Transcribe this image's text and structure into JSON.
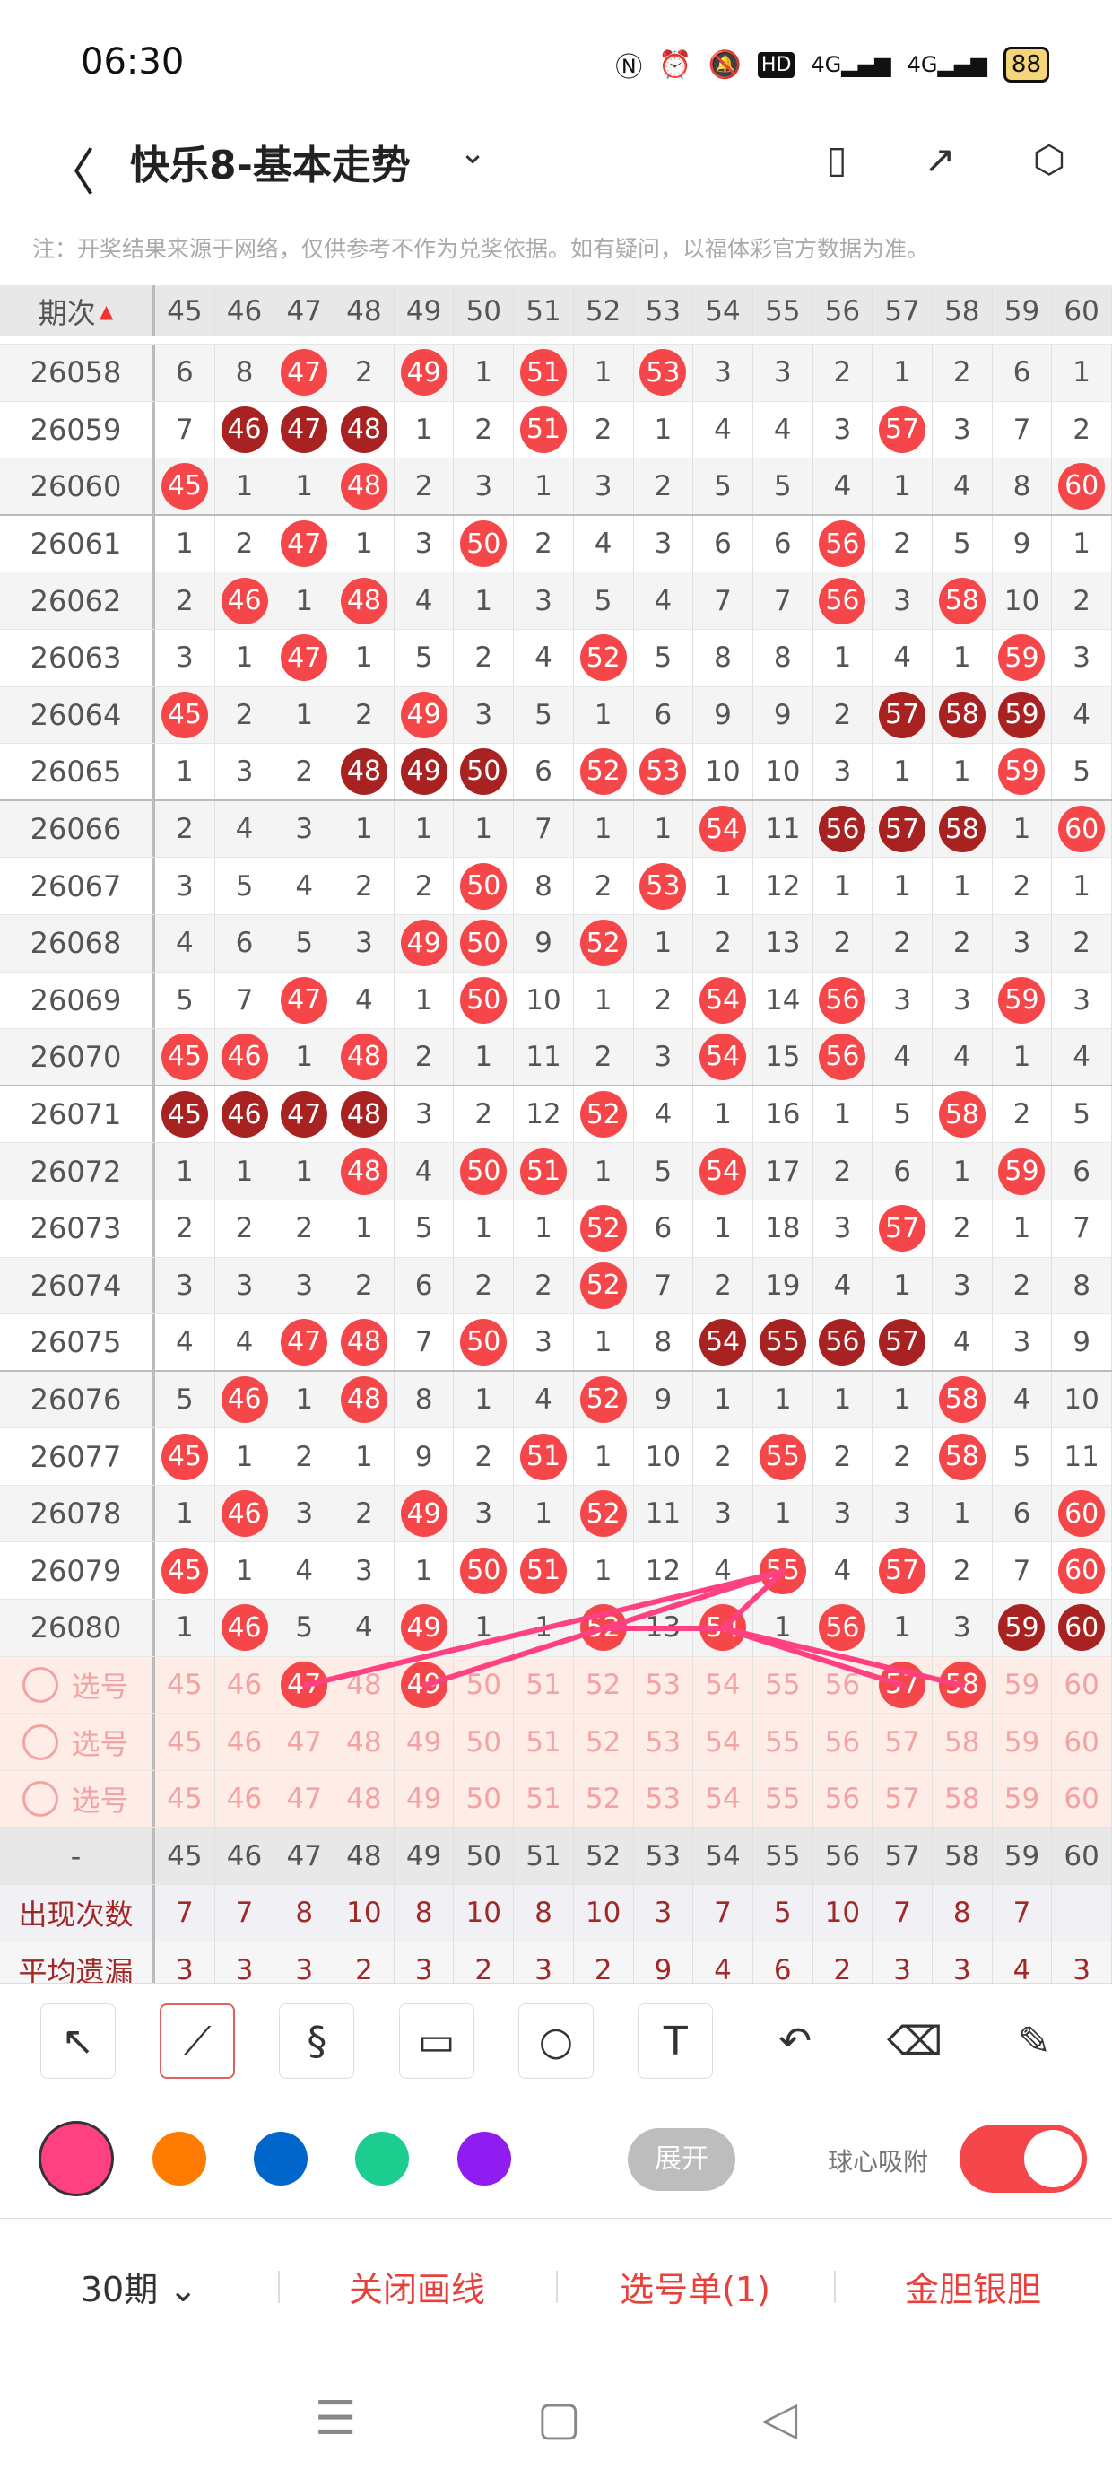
{
  "status_bar": {
    "time": "06:30",
    "battery": "88",
    "icons": [
      "nfc-icon",
      "alarm-icon",
      "mute-icon",
      "hd-icon",
      "signal-4g-icon",
      "signal-4g-icon"
    ],
    "hd": "HD",
    "net": "4G"
  },
  "header": {
    "title": "快乐8-基本走势",
    "back": "〈",
    "dropdown": "⌄"
  },
  "note": "注：开奖结果来源于网络，仅供参考不作为兑奖依据。如有疑问，以福体彩官方数据为准。",
  "table": {
    "period_header": "期次",
    "columns": [
      "45",
      "46",
      "47",
      "48",
      "49",
      "50",
      "51",
      "52",
      "53",
      "54",
      "55",
      "56",
      "57",
      "58",
      "59",
      "60"
    ],
    "ball_colors": {
      "hit": "#f5474a",
      "consecutive": "#a82222"
    },
    "rows": [
      {
        "period": "26058",
        "cells": [
          6,
          8,
          47,
          2,
          49,
          1,
          51,
          1,
          53,
          3,
          3,
          2,
          1,
          2,
          6,
          1
        ],
        "dark": []
      },
      {
        "period": "26059",
        "cells": [
          7,
          46,
          47,
          48,
          1,
          2,
          51,
          2,
          1,
          4,
          4,
          3,
          57,
          3,
          7,
          2
        ],
        "dark": [
          46,
          47,
          48
        ]
      },
      {
        "period": "26060",
        "cells": [
          45,
          1,
          1,
          48,
          2,
          3,
          1,
          3,
          2,
          5,
          5,
          4,
          1,
          4,
          8,
          60
        ],
        "dark": []
      },
      {
        "period": "26061",
        "cells": [
          1,
          2,
          47,
          1,
          3,
          50,
          2,
          4,
          3,
          6,
          6,
          56,
          2,
          5,
          9,
          1
        ],
        "dark": []
      },
      {
        "period": "26062",
        "cells": [
          2,
          46,
          1,
          48,
          4,
          1,
          3,
          5,
          4,
          7,
          7,
          56,
          3,
          58,
          10,
          2
        ],
        "dark": []
      },
      {
        "period": "26063",
        "cells": [
          3,
          1,
          47,
          1,
          5,
          2,
          4,
          52,
          5,
          8,
          8,
          1,
          4,
          1,
          59,
          3
        ],
        "dark": []
      },
      {
        "period": "26064",
        "cells": [
          45,
          2,
          1,
          2,
          49,
          3,
          5,
          1,
          6,
          9,
          9,
          2,
          57,
          58,
          59,
          4
        ],
        "dark": [
          57,
          58,
          59
        ]
      },
      {
        "period": "26065",
        "cells": [
          1,
          3,
          2,
          48,
          49,
          50,
          6,
          52,
          53,
          10,
          10,
          3,
          1,
          1,
          59,
          5
        ],
        "dark": [
          48,
          49,
          50
        ]
      },
      {
        "period": "26066",
        "cells": [
          2,
          4,
          3,
          1,
          1,
          1,
          7,
          1,
          1,
          54,
          11,
          56,
          57,
          58,
          1,
          60
        ],
        "dark": [
          56,
          57,
          58
        ]
      },
      {
        "period": "26067",
        "cells": [
          3,
          5,
          4,
          2,
          2,
          50,
          8,
          2,
          53,
          1,
          12,
          1,
          1,
          1,
          2,
          1
        ],
        "dark": []
      },
      {
        "period": "26068",
        "cells": [
          4,
          6,
          5,
          3,
          49,
          50,
          9,
          52,
          1,
          2,
          13,
          2,
          2,
          2,
          3,
          2
        ],
        "dark": []
      },
      {
        "period": "26069",
        "cells": [
          5,
          7,
          47,
          4,
          1,
          50,
          10,
          1,
          2,
          54,
          14,
          56,
          3,
          3,
          59,
          3
        ],
        "dark": []
      },
      {
        "period": "26070",
        "cells": [
          45,
          46,
          1,
          48,
          2,
          1,
          11,
          2,
          3,
          54,
          15,
          56,
          4,
          4,
          1,
          4
        ],
        "dark": []
      },
      {
        "period": "26071",
        "cells": [
          45,
          46,
          47,
          48,
          3,
          2,
          12,
          52,
          4,
          1,
          16,
          1,
          5,
          58,
          2,
          5
        ],
        "dark": [
          45,
          46,
          47,
          48
        ]
      },
      {
        "period": "26072",
        "cells": [
          1,
          1,
          1,
          48,
          4,
          50,
          51,
          1,
          5,
          54,
          17,
          2,
          6,
          1,
          59,
          6
        ],
        "dark": []
      },
      {
        "period": "26073",
        "cells": [
          2,
          2,
          2,
          1,
          5,
          1,
          1,
          52,
          6,
          1,
          18,
          3,
          57,
          2,
          1,
          7
        ],
        "dark": []
      },
      {
        "period": "26074",
        "cells": [
          3,
          3,
          3,
          2,
          6,
          2,
          2,
          52,
          7,
          2,
          19,
          4,
          1,
          3,
          2,
          8
        ],
        "dark": []
      },
      {
        "period": "26075",
        "cells": [
          4,
          4,
          47,
          48,
          7,
          50,
          3,
          1,
          8,
          54,
          55,
          56,
          57,
          4,
          3,
          9
        ],
        "dark": [
          54,
          55,
          56,
          57
        ]
      },
      {
        "period": "26076",
        "cells": [
          5,
          46,
          1,
          48,
          8,
          1,
          4,
          52,
          9,
          1,
          1,
          1,
          1,
          58,
          4,
          10
        ],
        "dark": []
      },
      {
        "period": "26077",
        "cells": [
          45,
          1,
          2,
          1,
          9,
          2,
          51,
          1,
          10,
          2,
          55,
          2,
          2,
          58,
          5,
          11
        ],
        "dark": []
      },
      {
        "period": "26078",
        "cells": [
          1,
          46,
          3,
          2,
          49,
          3,
          1,
          52,
          11,
          3,
          1,
          3,
          3,
          1,
          6,
          60
        ],
        "dark": []
      },
      {
        "period": "26079",
        "cells": [
          45,
          1,
          4,
          3,
          1,
          50,
          51,
          1,
          12,
          4,
          55,
          4,
          57,
          2,
          7,
          60
        ],
        "dark": []
      },
      {
        "period": "26080",
        "cells": [
          1,
          46,
          5,
          4,
          49,
          1,
          1,
          52,
          13,
          54,
          1,
          56,
          1,
          3,
          59,
          60
        ],
        "dark": [
          59,
          60
        ]
      }
    ],
    "select_rows": [
      {
        "label": "选号",
        "selected": [
          47,
          49,
          57,
          58
        ]
      },
      {
        "label": "选号",
        "selected": []
      },
      {
        "label": "选号",
        "selected": []
      }
    ],
    "stats": [
      {
        "label": "-",
        "values": [
          "45",
          "46",
          "47",
          "48",
          "49",
          "50",
          "51",
          "52",
          "53",
          "54",
          "55",
          "56",
          "57",
          "58",
          "59",
          "60"
        ]
      },
      {
        "label": "出现次数",
        "values": [
          "7",
          "7",
          "8",
          "10",
          "8",
          "10",
          "8",
          "10",
          "3",
          "7",
          "5",
          "10",
          "7",
          "8",
          "7",
          ""
        ]
      },
      {
        "label": "平均遗漏",
        "values": [
          "3",
          "3",
          "3",
          "2",
          "3",
          "2",
          "3",
          "2",
          "9",
          "4",
          "6",
          "2",
          "3",
          "3",
          "4",
          "3"
        ]
      }
    ],
    "expand": "展开"
  },
  "drawing": {
    "line_color": "#ff4081"
  },
  "toolbar": {
    "tools": [
      {
        "name": "arrow-tool",
        "glyph": "↖",
        "active": false
      },
      {
        "name": "line-tool",
        "glyph": "⟋",
        "active": true
      },
      {
        "name": "curve-tool",
        "glyph": "§",
        "active": false
      },
      {
        "name": "rectangle-tool",
        "glyph": "▭",
        "active": false
      },
      {
        "name": "circle-tool",
        "glyph": "○",
        "active": false
      },
      {
        "name": "text-tool",
        "glyph": "T",
        "active": false
      },
      {
        "name": "undo-tool",
        "glyph": "↶",
        "active": false,
        "plain": true
      },
      {
        "name": "eraser-tool",
        "glyph": "⌫",
        "active": false,
        "plain": true
      },
      {
        "name": "clear-tool",
        "glyph": "✎",
        "active": false,
        "plain": true
      }
    ]
  },
  "colors": {
    "swatches": [
      "#ff4081",
      "#ff7a00",
      "#0066cc",
      "#1dcc8f",
      "#8f1cf0"
    ],
    "selected": "#ff4081",
    "magnet_label": "球心吸附",
    "magnet_on": true
  },
  "bottom_bar": {
    "periods": "30期 ⌄",
    "close_drawing": "关闭画线",
    "pick_list": "选号单(1)",
    "gold_silver": "金胆银胆"
  }
}
